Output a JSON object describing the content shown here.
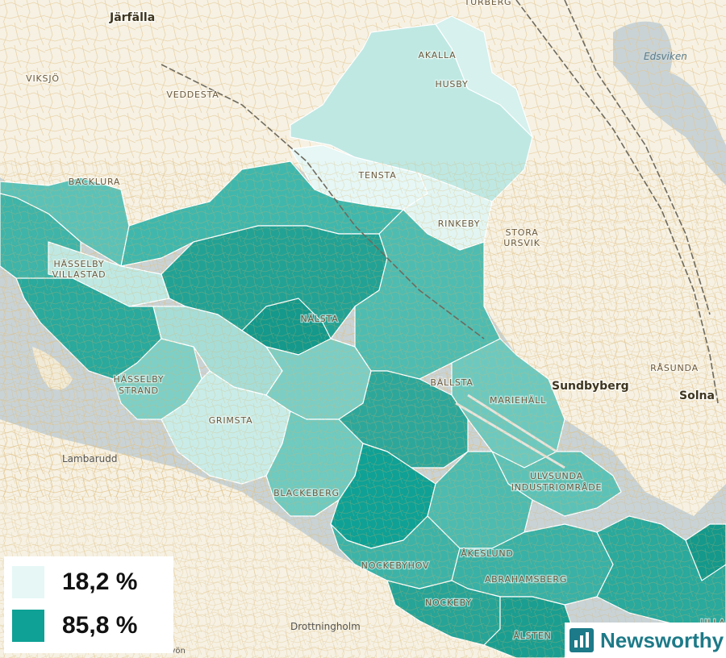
{
  "map": {
    "districts": [
      "Akalla",
      "Husby",
      "Tensta",
      "Rinkeby",
      "Backlura",
      "Hässelby Villastad",
      "Nälsta",
      "Hässelby Strand",
      "Grimsta",
      "Bällsta",
      "Mariehäll",
      "Blackeberg",
      "Ulvsunda Industriområde",
      "Åkeslund",
      "Nockebyhov",
      "Abrahamsberg",
      "Nockeby",
      "Ålsten",
      "Viksjö",
      "Veddesta",
      "Stora Ursvik",
      "Rasunda",
      "Turberg"
    ],
    "labels": {
      "turberg": "TURBERG",
      "akalla": "AKALLA",
      "husby": "HUSBY",
      "viksjo": "VIKSJÖ",
      "veddesta": "VEDDESTA",
      "backlura": "BACKLURA",
      "tensta": "TENSTA",
      "rinkeby": "RINKEBY",
      "stora": "STORA",
      "ursvik": "URSVIK",
      "hasselby1": "HÄSSELBY",
      "villastad": "VILLASTAD",
      "nalsta": "NÄLSTA",
      "hasselby2": "HÄSSELBY",
      "strand": "STRAND",
      "grimsta": "GRIMSTA",
      "ballsta": "BÄLLSTA",
      "mariehall": "MARIEHÄLL",
      "rasunda": "RÅSUNDA",
      "ulvsunda": "ULVSUNDA",
      "industri": "INDUSTRIOMRÅDE",
      "blackeberg": "BLACKEBERG",
      "akeslund": "ÅKESLUND",
      "nockebyhov": "NOCKEBYHOV",
      "abrahamsberg": "ABRAHAMSBERG",
      "nockeby": "NOCKEBY",
      "alsten": "ÅLSTEN",
      "jarfalla": "Järfälla",
      "sundbyberg": "Sundbyberg",
      "solna": "Solna",
      "edsviken": "Edsviken",
      "lambarudd": "Lambarudd",
      "drottningholm": "Drottningholm",
      "lovon": "Lovön",
      "ulla": "ULLA"
    }
  },
  "legend": {
    "low": {
      "label": "18,2 %",
      "color": "#e6f7f5"
    },
    "high": {
      "label": "85,8 %",
      "color": "#0fa196"
    }
  },
  "brand": {
    "name": "Newsworthy",
    "color": "#1d7a88"
  },
  "colors": {
    "land": "#f6f1e3",
    "water": "#c9d3d6",
    "roads": "#e8c98a",
    "border": "#ffffff"
  }
}
